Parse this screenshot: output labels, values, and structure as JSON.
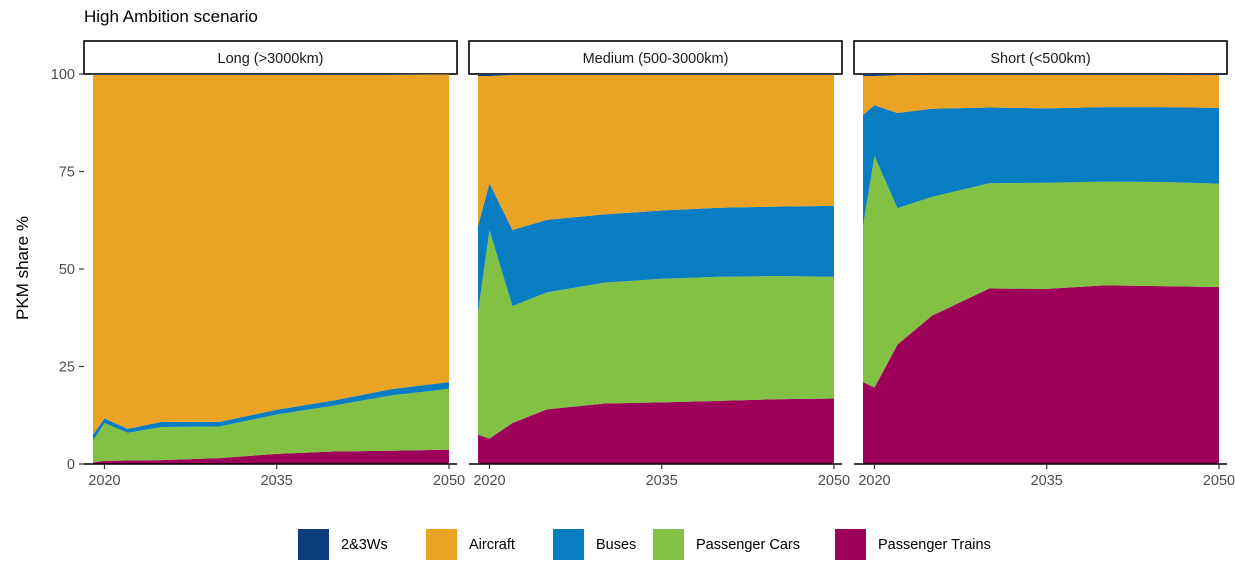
{
  "chart_data": {
    "type": "area",
    "title": "High Ambition scenario",
    "xlabel": "",
    "ylabel": "PKM share %",
    "ylim": [
      0,
      100
    ],
    "xlim": [
      2019,
      2050
    ],
    "x_ticks": [
      2020,
      2035,
      2050
    ],
    "y_ticks": [
      0,
      25,
      50,
      75,
      100
    ],
    "stacking": "percent",
    "stack_order_bottom_to_top": [
      "Passenger Trains",
      "Passenger Cars",
      "Buses",
      "Aircraft",
      "2&3Ws"
    ],
    "legend": {
      "position": "bottom",
      "entries": [
        {
          "name": "2&3Ws",
          "color": "#0b3d7c"
        },
        {
          "name": "Aircraft",
          "color": "#eba324"
        },
        {
          "name": "Buses",
          "color": "#087dc2"
        },
        {
          "name": "Passenger Cars",
          "color": "#82c144"
        },
        {
          "name": "Passenger Trains",
          "color": "#9e015a"
        }
      ]
    },
    "facets": [
      {
        "label": "Long (>3000km)",
        "x": [
          2019,
          2020,
          2022,
          2025,
          2030,
          2035,
          2040,
          2045,
          2050
        ],
        "series": [
          {
            "name": "Passenger Trains",
            "values": [
              0.4,
              0.8,
              0.9,
              1.0,
              1.5,
              2.6,
              3.2,
              3.4,
              3.7
            ]
          },
          {
            "name": "Passenger Cars",
            "values": [
              5.6,
              9.7,
              7.1,
              8.5,
              8.1,
              10.1,
              11.8,
              14.2,
              15.6
            ]
          },
          {
            "name": "Buses",
            "values": [
              1.5,
              1.2,
              1.0,
              1.3,
              1.2,
              1.2,
              1.3,
              1.6,
              1.7
            ]
          },
          {
            "name": "Aircraft",
            "values": [
              92.3,
              88.1,
              90.8,
              89.0,
              89.0,
              85.9,
              83.5,
              80.6,
              78.9
            ]
          },
          {
            "name": "2&3Ws",
            "values": [
              0.2,
              0.2,
              0.2,
              0.2,
              0.2,
              0.2,
              0.2,
              0.2,
              0.2
            ]
          }
        ]
      },
      {
        "label": "Medium (500-3000km)",
        "x": [
          2019,
          2020,
          2022,
          2025,
          2030,
          2035,
          2040,
          2045,
          2050
        ],
        "series": [
          {
            "name": "Passenger Trains",
            "values": [
              7.5,
              6.5,
              10.5,
              14.0,
              15.5,
              15.8,
              16.2,
              16.6,
              16.8
            ]
          },
          {
            "name": "Passenger Cars",
            "values": [
              31.5,
              53.5,
              30.0,
              30.0,
              31.0,
              31.7,
              31.8,
              31.6,
              31.2
            ]
          },
          {
            "name": "Buses",
            "values": [
              22.0,
              12.0,
              19.5,
              18.6,
              17.5,
              17.5,
              17.7,
              17.8,
              18.2
            ]
          },
          {
            "name": "Aircraft",
            "values": [
              38.5,
              27.5,
              39.8,
              37.2,
              35.8,
              34.8,
              34.1,
              33.8,
              33.6
            ]
          },
          {
            "name": "2&3Ws",
            "values": [
              0.5,
              0.5,
              0.2,
              0.2,
              0.2,
              0.2,
              0.2,
              0.2,
              0.2
            ]
          }
        ]
      },
      {
        "label": "Short (<500km)",
        "x": [
          2019,
          2020,
          2022,
          2025,
          2030,
          2035,
          2040,
          2045,
          2050
        ],
        "series": [
          {
            "name": "Passenger Trains",
            "values": [
              21.0,
              19.6,
              30.6,
              38.0,
              45.0,
              44.9,
              45.8,
              45.6,
              45.4
            ]
          },
          {
            "name": "Passenger Cars",
            "values": [
              40.0,
              59.4,
              35.0,
              30.5,
              27.0,
              27.2,
              26.6,
              26.7,
              26.5
            ]
          },
          {
            "name": "Buses",
            "values": [
              28.5,
              13.0,
              24.4,
              22.6,
              19.4,
              19.1,
              19.1,
              19.2,
              19.4
            ]
          },
          {
            "name": "Aircraft",
            "values": [
              10.0,
              7.5,
              9.7,
              8.7,
              8.4,
              8.6,
              8.3,
              8.3,
              8.4
            ]
          },
          {
            "name": "2&3Ws",
            "values": [
              0.5,
              0.5,
              0.3,
              0.2,
              0.2,
              0.2,
              0.2,
              0.2,
              0.3
            ]
          }
        ]
      }
    ]
  }
}
